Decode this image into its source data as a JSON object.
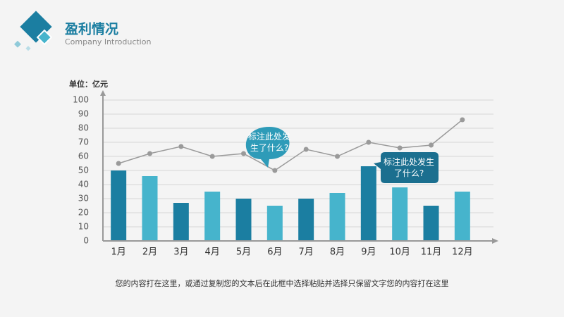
{
  "chart_data": {
    "type": "bar",
    "title": "盈利情况",
    "subtitle": "Company Introduction",
    "unit_label": "单位：亿元",
    "categories": [
      "1月",
      "2月",
      "3月",
      "4月",
      "5月",
      "6月",
      "7月",
      "8月",
      "9月",
      "10月",
      "11月",
      "12月"
    ],
    "values": [
      50,
      46,
      27,
      35,
      30,
      25,
      30,
      34,
      53,
      38,
      25,
      35
    ],
    "colors": [
      "#1b7ea1",
      "#46b4cc"
    ],
    "line_values": [
      55,
      62,
      67,
      60,
      62,
      50,
      65,
      60,
      70,
      66,
      68,
      86
    ],
    "line_color": "#9a9a9a",
    "ylim": [
      0,
      100
    ],
    "yticks": [
      0,
      10,
      20,
      30,
      40,
      50,
      60,
      70,
      80,
      90,
      100
    ],
    "grid": true,
    "annotations": [
      "标注此处发生了什么?",
      "标注此处发生了什么?"
    ]
  },
  "footer": "您的内容打在这里，或通过复制您的文本后在此框中选择粘贴并选择只保留文字您的内容打在这里"
}
